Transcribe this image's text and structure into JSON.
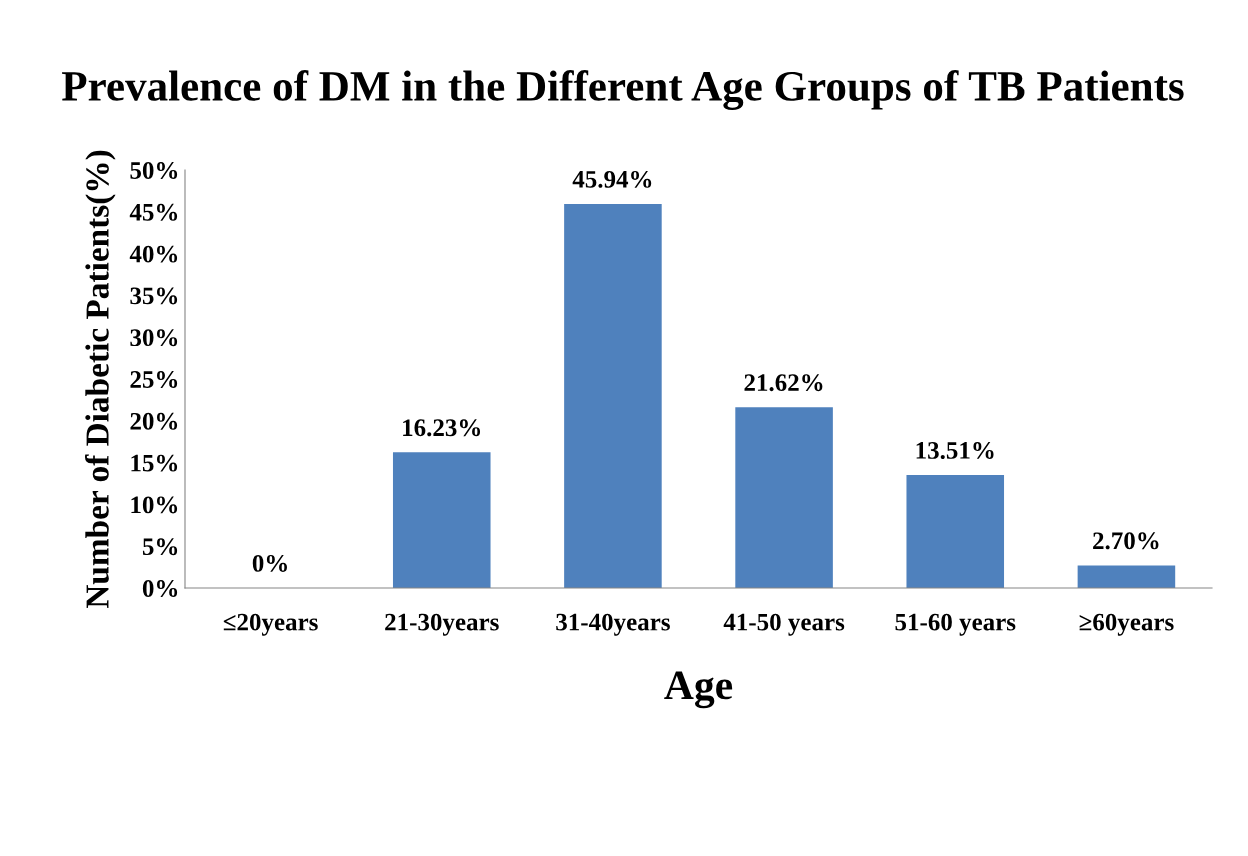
{
  "chart_data": {
    "type": "bar",
    "title": "Prevalence of DM in the Different Age Groups of TB Patients",
    "xlabel": "Age",
    "ylabel": "Number of Diabetic Patients(%)",
    "categories": [
      "≤20years",
      "21-30years",
      "31-40years",
      "41-50 years",
      "51-60 years",
      "≥60years"
    ],
    "values": [
      0,
      16.23,
      45.94,
      21.62,
      13.51,
      2.7
    ],
    "value_labels": [
      "0%",
      "16.23%",
      "45.94%",
      "21.62%",
      "13.51%",
      "2.70%"
    ],
    "color": "#4f81bd",
    "ylim": [
      0,
      50
    ],
    "yticks": [
      {
        "value": 0,
        "label": "0%"
      },
      {
        "value": 5,
        "label": "5%"
      },
      {
        "value": 10,
        "label": "10%"
      },
      {
        "value": 15,
        "label": "15%"
      },
      {
        "value": 20,
        "label": "20%"
      },
      {
        "value": 25,
        "label": "25%"
      },
      {
        "value": 30,
        "label": "30%"
      },
      {
        "value": 35,
        "label": "35%"
      },
      {
        "value": 40,
        "label": "40%"
      },
      {
        "value": 45,
        "label": "45%"
      },
      {
        "value": 50,
        "label": "50%"
      }
    ],
    "grid": false,
    "legend": false
  }
}
